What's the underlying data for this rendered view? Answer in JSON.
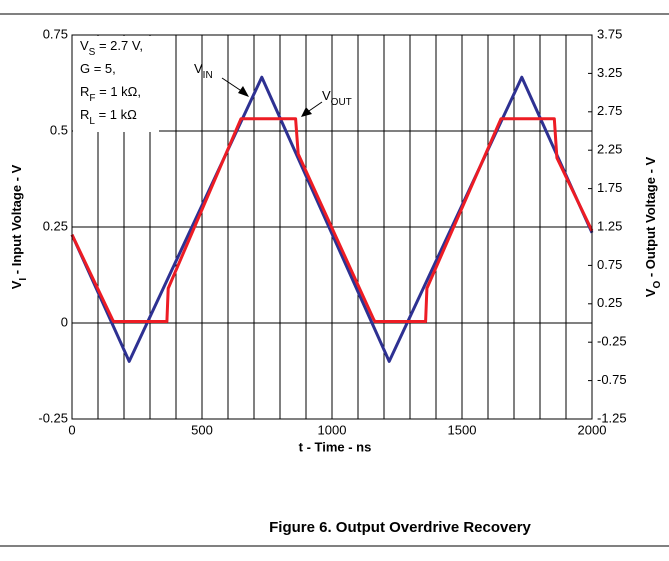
{
  "chart_data": {
    "type": "line",
    "caption": "Figure 6. Output Overdrive Recovery",
    "xlabel": "t - Time - ns",
    "ylabel": [
      {
        "text": "V"
      },
      {
        "text": "I",
        "sub": true
      },
      {
        "text": " - Input Voltage - V"
      }
    ],
    "y2label": [
      {
        "text": "V"
      },
      {
        "text": "O",
        "sub": true
      },
      {
        "text": " - Output Voltage - V"
      }
    ],
    "xlim": [
      0,
      2000
    ],
    "xticks": [
      0,
      500,
      1000,
      1500,
      2000
    ],
    "x_minor_grid": [
      100,
      200,
      300,
      400,
      600,
      700,
      800,
      900,
      1100,
      1200,
      1300,
      1400,
      1600,
      1700,
      1800,
      1900
    ],
    "ylim": [
      -0.25,
      0.75
    ],
    "yticks": [
      0.75,
      0.5,
      0.25,
      0,
      -0.25
    ],
    "y2lim": [
      -1.25,
      3.75
    ],
    "y2ticks": [
      3.75,
      3.25,
      2.75,
      2.25,
      1.75,
      1.25,
      0.75,
      0.25,
      -0.25,
      -0.75,
      -1.25
    ],
    "grid": true,
    "conditions": [
      [
        {
          "text": "V"
        },
        {
          "text": "S",
          "sub": true
        },
        {
          "text": " = 2.7 V,"
        }
      ],
      [
        {
          "text": "G = 5,"
        }
      ],
      [
        {
          "text": "R"
        },
        {
          "text": "F",
          "sub": true
        },
        {
          "text": " = 1 kΩ,"
        }
      ],
      [
        {
          "text": "R"
        },
        {
          "text": "L",
          "sub": true
        },
        {
          "text": " = 1 kΩ"
        }
      ]
    ],
    "series": [
      {
        "label": [
          {
            "text": "V"
          },
          {
            "text": "IN",
            "sub": true
          }
        ],
        "color": "#2e3192",
        "x": [
          0,
          220,
          730,
          1220,
          1730,
          2000
        ],
        "values": [
          0.23,
          -0.1,
          0.64,
          -0.1,
          0.64,
          0.235
        ]
      },
      {
        "label": [
          {
            "text": "V"
          },
          {
            "text": "OUT",
            "sub": true
          }
        ],
        "color": "#ed1c24",
        "axis": "y2",
        "x": [
          0,
          155,
          160,
          365,
          370,
          650,
          860,
          870,
          1160,
          1165,
          1360,
          1365,
          1650,
          1855,
          1865,
          2000
        ],
        "values": [
          1.15,
          0.05,
          0.02,
          0.02,
          0.45,
          2.66,
          2.66,
          2.2,
          0.05,
          0.02,
          0.02,
          0.45,
          2.66,
          2.66,
          2.15,
          1.2
        ]
      }
    ]
  }
}
